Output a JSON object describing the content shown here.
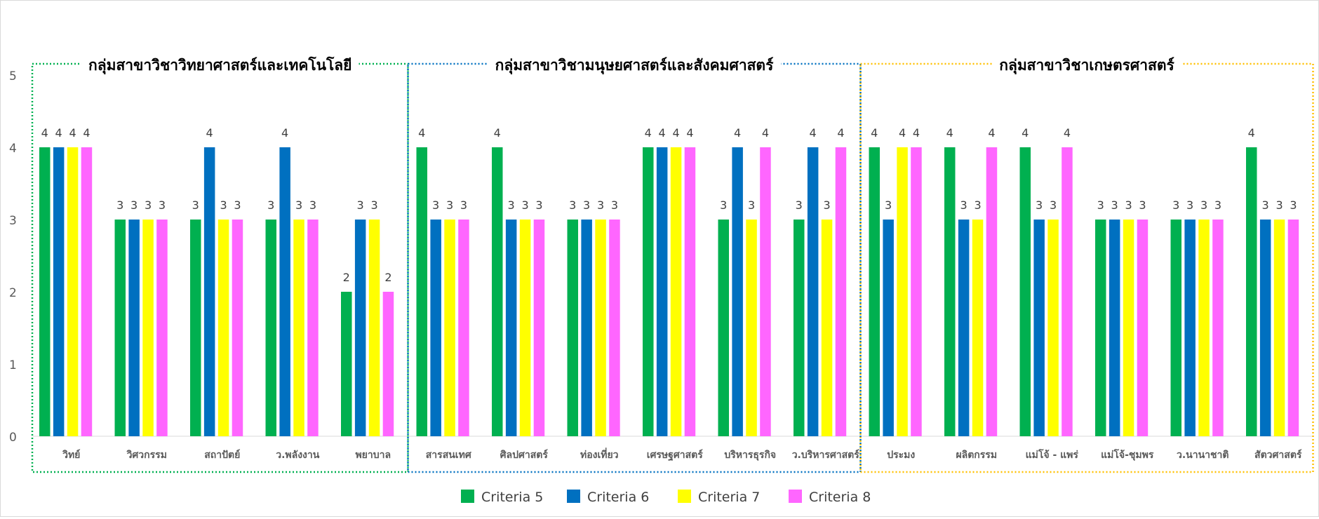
{
  "chart_data": {
    "type": "bar",
    "ylim": [
      0,
      5
    ],
    "yticks": [
      "0",
      "1",
      "2",
      "3",
      "4",
      "5"
    ],
    "legend_position": "bottom",
    "colors": [
      "#00B050",
      "#0070C0",
      "#FFFF00",
      "#FF66FF"
    ],
    "series_names": [
      "Criteria 5",
      "Criteria 6",
      "Criteria 7",
      "Criteria 8"
    ],
    "groups": [
      {
        "title": "กลุ่มสาขาวิชาวิทยาศาสตร์และเทคโนโลยี",
        "border_color": "#00B050",
        "categories": [
          {
            "label": "วิทย์",
            "values": [
              4,
              4,
              4,
              4
            ]
          },
          {
            "label": "วิศวกรรม",
            "values": [
              3,
              3,
              3,
              3
            ]
          },
          {
            "label": "สถาปัตย์",
            "values": [
              3,
              4,
              3,
              3
            ]
          },
          {
            "label": "ว.พลังงาน",
            "values": [
              3,
              4,
              3,
              3
            ]
          },
          {
            "label": "พยาบาล",
            "values": [
              2,
              3,
              3,
              2
            ]
          }
        ]
      },
      {
        "title": "กลุ่มสาขาวิชามนุษยศาสตร์และสังคมศาสตร์",
        "border_color": "#0070C0",
        "categories": [
          {
            "label": "สารสนเทศ",
            "values": [
              4,
              3,
              3,
              3
            ]
          },
          {
            "label": "ศิลปศาสตร์",
            "values": [
              4,
              3,
              3,
              3
            ]
          },
          {
            "label": "ท่องเที่ยว",
            "values": [
              3,
              3,
              3,
              3
            ]
          },
          {
            "label": "เศรษฐศาสตร์",
            "values": [
              4,
              4,
              4,
              4
            ]
          },
          {
            "label": "บริหารธุรกิจ",
            "values": [
              3,
              4,
              3,
              4
            ]
          },
          {
            "label": "ว.บริหารศาสตร์",
            "values": [
              3,
              4,
              3,
              4
            ]
          }
        ]
      },
      {
        "title": "กลุ่มสาขาวิชาเกษตรศาสตร์",
        "border_color": "#FFC000",
        "categories": [
          {
            "label": "ประมง",
            "values": [
              4,
              3,
              4,
              4
            ]
          },
          {
            "label": "ผลิตกรรม",
            "values": [
              4,
              3,
              3,
              4
            ]
          },
          {
            "label": "แม่โจ้ - แพร่",
            "values": [
              4,
              3,
              3,
              4
            ]
          },
          {
            "label": "แม่โจ้-ชุมพร",
            "values": [
              3,
              3,
              3,
              3
            ]
          },
          {
            "label": "ว.นานาชาติ",
            "values": [
              3,
              3,
              3,
              3
            ]
          },
          {
            "label": "สัตวศาสตร์",
            "values": [
              4,
              3,
              3,
              3
            ]
          }
        ]
      }
    ]
  }
}
